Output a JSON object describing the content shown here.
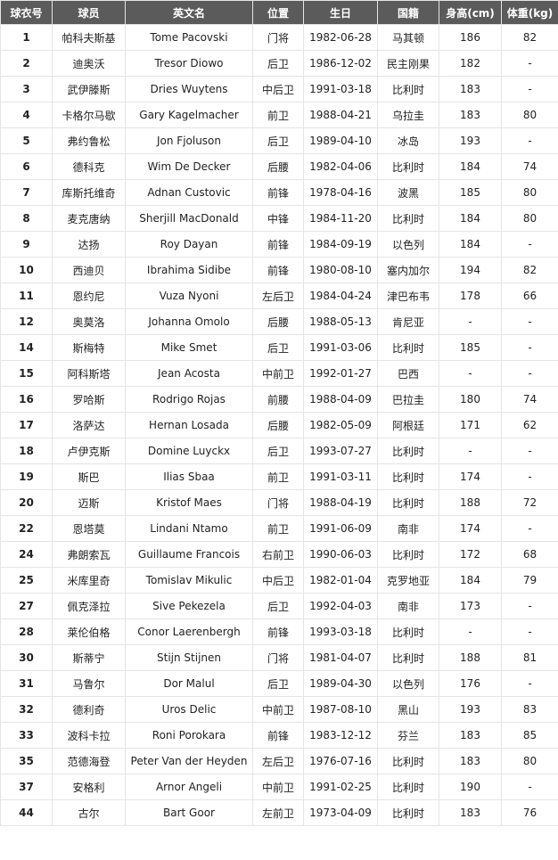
{
  "table": {
    "header": [
      "球衣号",
      "球员",
      "英文名",
      "位置",
      "生日",
      "国籍",
      "身高(cm)",
      "体重(kg)"
    ],
    "rows": [
      [
        "1",
        "帕科夫斯基",
        "Tome Pacovski",
        "门将",
        "1982-06-28",
        "马其顿",
        "186",
        "82"
      ],
      [
        "2",
        "迪奥沃",
        "Tresor Diowo",
        "后卫",
        "1986-12-02",
        "民主刚果",
        "182",
        "-"
      ],
      [
        "3",
        "武伊滕斯",
        "Dries Wuytens",
        "中后卫",
        "1991-03-18",
        "比利时",
        "183",
        "-"
      ],
      [
        "4",
        "卡格尔马歇",
        "Gary Kagelmacher",
        "前卫",
        "1988-04-21",
        "乌拉圭",
        "183",
        "80"
      ],
      [
        "5",
        "弗约鲁松",
        "Jon Fjoluson",
        "后卫",
        "1989-04-10",
        "冰岛",
        "193",
        "-"
      ],
      [
        "6",
        "德科克",
        "Wim De Decker",
        "后腰",
        "1982-04-06",
        "比利时",
        "184",
        "74"
      ],
      [
        "7",
        "库斯托维奇",
        "Adnan Custovic",
        "前锋",
        "1978-04-16",
        "波黑",
        "185",
        "80"
      ],
      [
        "8",
        "麦克唐纳",
        "Sherjill MacDonald",
        "中锋",
        "1984-11-20",
        "比利时",
        "184",
        "80"
      ],
      [
        "9",
        "达扬",
        "Roy Dayan",
        "前锋",
        "1984-09-19",
        "以色列",
        "184",
        "-"
      ],
      [
        "10",
        "西迪贝",
        "Ibrahima Sidibe",
        "前锋",
        "1980-08-10",
        "塞内加尔",
        "194",
        "82"
      ],
      [
        "11",
        "恩约尼",
        "Vuza Nyoni",
        "左后卫",
        "1984-04-24",
        "津巴布韦",
        "178",
        "66"
      ],
      [
        "12",
        "奥莫洛",
        "Johanna Omolo",
        "后腰",
        "1988-05-13",
        "肯尼亚",
        "-",
        "-"
      ],
      [
        "14",
        "斯梅特",
        "Mike Smet",
        "后卫",
        "1991-03-06",
        "比利时",
        "185",
        "-"
      ],
      [
        "15",
        "阿科斯塔",
        "Jean Acosta",
        "中前卫",
        "1992-01-27",
        "巴西",
        "-",
        "-"
      ],
      [
        "16",
        "罗哈斯",
        "Rodrigo Rojas",
        "前腰",
        "1988-04-09",
        "巴拉圭",
        "180",
        "74"
      ],
      [
        "17",
        "洛萨达",
        "Hernan Losada",
        "后腰",
        "1982-05-09",
        "阿根廷",
        "171",
        "62"
      ],
      [
        "18",
        "卢伊克斯",
        "Domine Luyckx",
        "后卫",
        "1993-07-27",
        "比利时",
        "-",
        "-"
      ],
      [
        "19",
        "斯巴",
        "Ilias Sbaa",
        "前卫",
        "1991-03-11",
        "比利时",
        "174",
        "-"
      ],
      [
        "20",
        "迈斯",
        "Kristof Maes",
        "门将",
        "1988-04-19",
        "比利时",
        "188",
        "72"
      ],
      [
        "22",
        "恩塔莫",
        "Lindani Ntamo",
        "前卫",
        "1991-06-09",
        "南非",
        "174",
        "-"
      ],
      [
        "24",
        "弗朗索瓦",
        "Guillaume Francois",
        "右前卫",
        "1990-06-03",
        "比利时",
        "172",
        "68"
      ],
      [
        "25",
        "米库里奇",
        "Tomislav Mikulic",
        "中后卫",
        "1982-01-04",
        "克罗地亚",
        "184",
        "79"
      ],
      [
        "27",
        "佩克泽拉",
        "Sive Pekezela",
        "后卫",
        "1992-04-03",
        "南非",
        "173",
        "-"
      ],
      [
        "28",
        "莱伦伯格",
        "Conor Laerenbergh",
        "前锋",
        "1993-03-18",
        "比利时",
        "-",
        "-"
      ],
      [
        "30",
        "斯蒂宁",
        "Stijn Stijnen",
        "门将",
        "1981-04-07",
        "比利时",
        "188",
        "81"
      ],
      [
        "31",
        "马鲁尔",
        "Dor Malul",
        "后卫",
        "1989-04-30",
        "以色列",
        "176",
        "-"
      ],
      [
        "32",
        "德利奇",
        "Uros Delic",
        "中前卫",
        "1987-08-10",
        "黑山",
        "193",
        "83"
      ],
      [
        "33",
        "波科卡拉",
        "Roni Porokara",
        "前锋",
        "1983-12-12",
        "芬兰",
        "183",
        "85"
      ],
      [
        "35",
        "范德海登",
        "Peter Van der Heyden",
        "左后卫",
        "1976-07-16",
        "比利时",
        "183",
        "80"
      ],
      [
        "37",
        "安格利",
        "Arnor Angeli",
        "中前卫",
        "1991-02-25",
        "比利时",
        "190",
        "-"
      ],
      [
        "44",
        "古尔",
        "Bart Goor",
        "左前卫",
        "1973-04-09",
        "比利时",
        "183",
        "76"
      ]
    ]
  }
}
